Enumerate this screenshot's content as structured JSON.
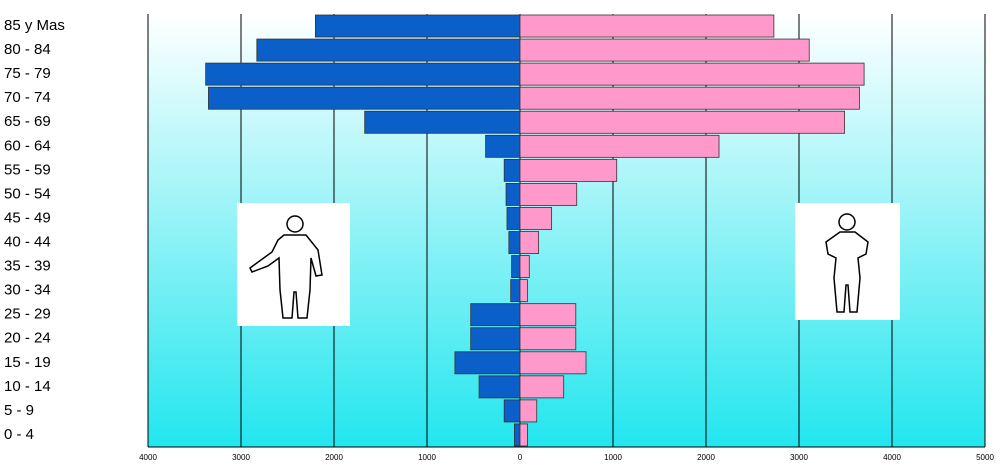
{
  "chart_data": {
    "type": "pyramid",
    "categories": [
      "85 y Mas",
      "80 - 84",
      "75 - 79",
      "70 - 74",
      "65 - 69",
      "60 - 64",
      "55 - 59",
      "50 - 54",
      "45 - 49",
      "40 - 44",
      "35 - 39",
      "30 - 34",
      "25 - 29",
      "20 - 24",
      "15 - 19",
      "10 - 14",
      "5 - 9",
      "0 - 4"
    ],
    "series": [
      {
        "color": "#0a5fc8",
        "values": [
          -2200,
          -2830,
          -3380,
          -3350,
          -1670,
          -370,
          -170,
          -150,
          -140,
          -120,
          -90,
          -100,
          -530,
          -530,
          -700,
          -440,
          -170,
          -60
        ]
      },
      {
        "color": "#ff99cc",
        "values": [
          2730,
          3110,
          3700,
          3650,
          3490,
          2140,
          1040,
          610,
          340,
          200,
          100,
          80,
          600,
          600,
          710,
          470,
          180,
          80
        ]
      }
    ],
    "xlim": [
      -4000,
      5000
    ],
    "xticks": [
      {
        "value": -4000,
        "label": "4000"
      },
      {
        "value": -3000,
        "label": "3000"
      },
      {
        "value": -2000,
        "label": "2000"
      },
      {
        "value": -1000,
        "label": "1000"
      },
      0,
      1000,
      2000,
      3000,
      4000,
      5000
    ],
    "grid": true
  }
}
